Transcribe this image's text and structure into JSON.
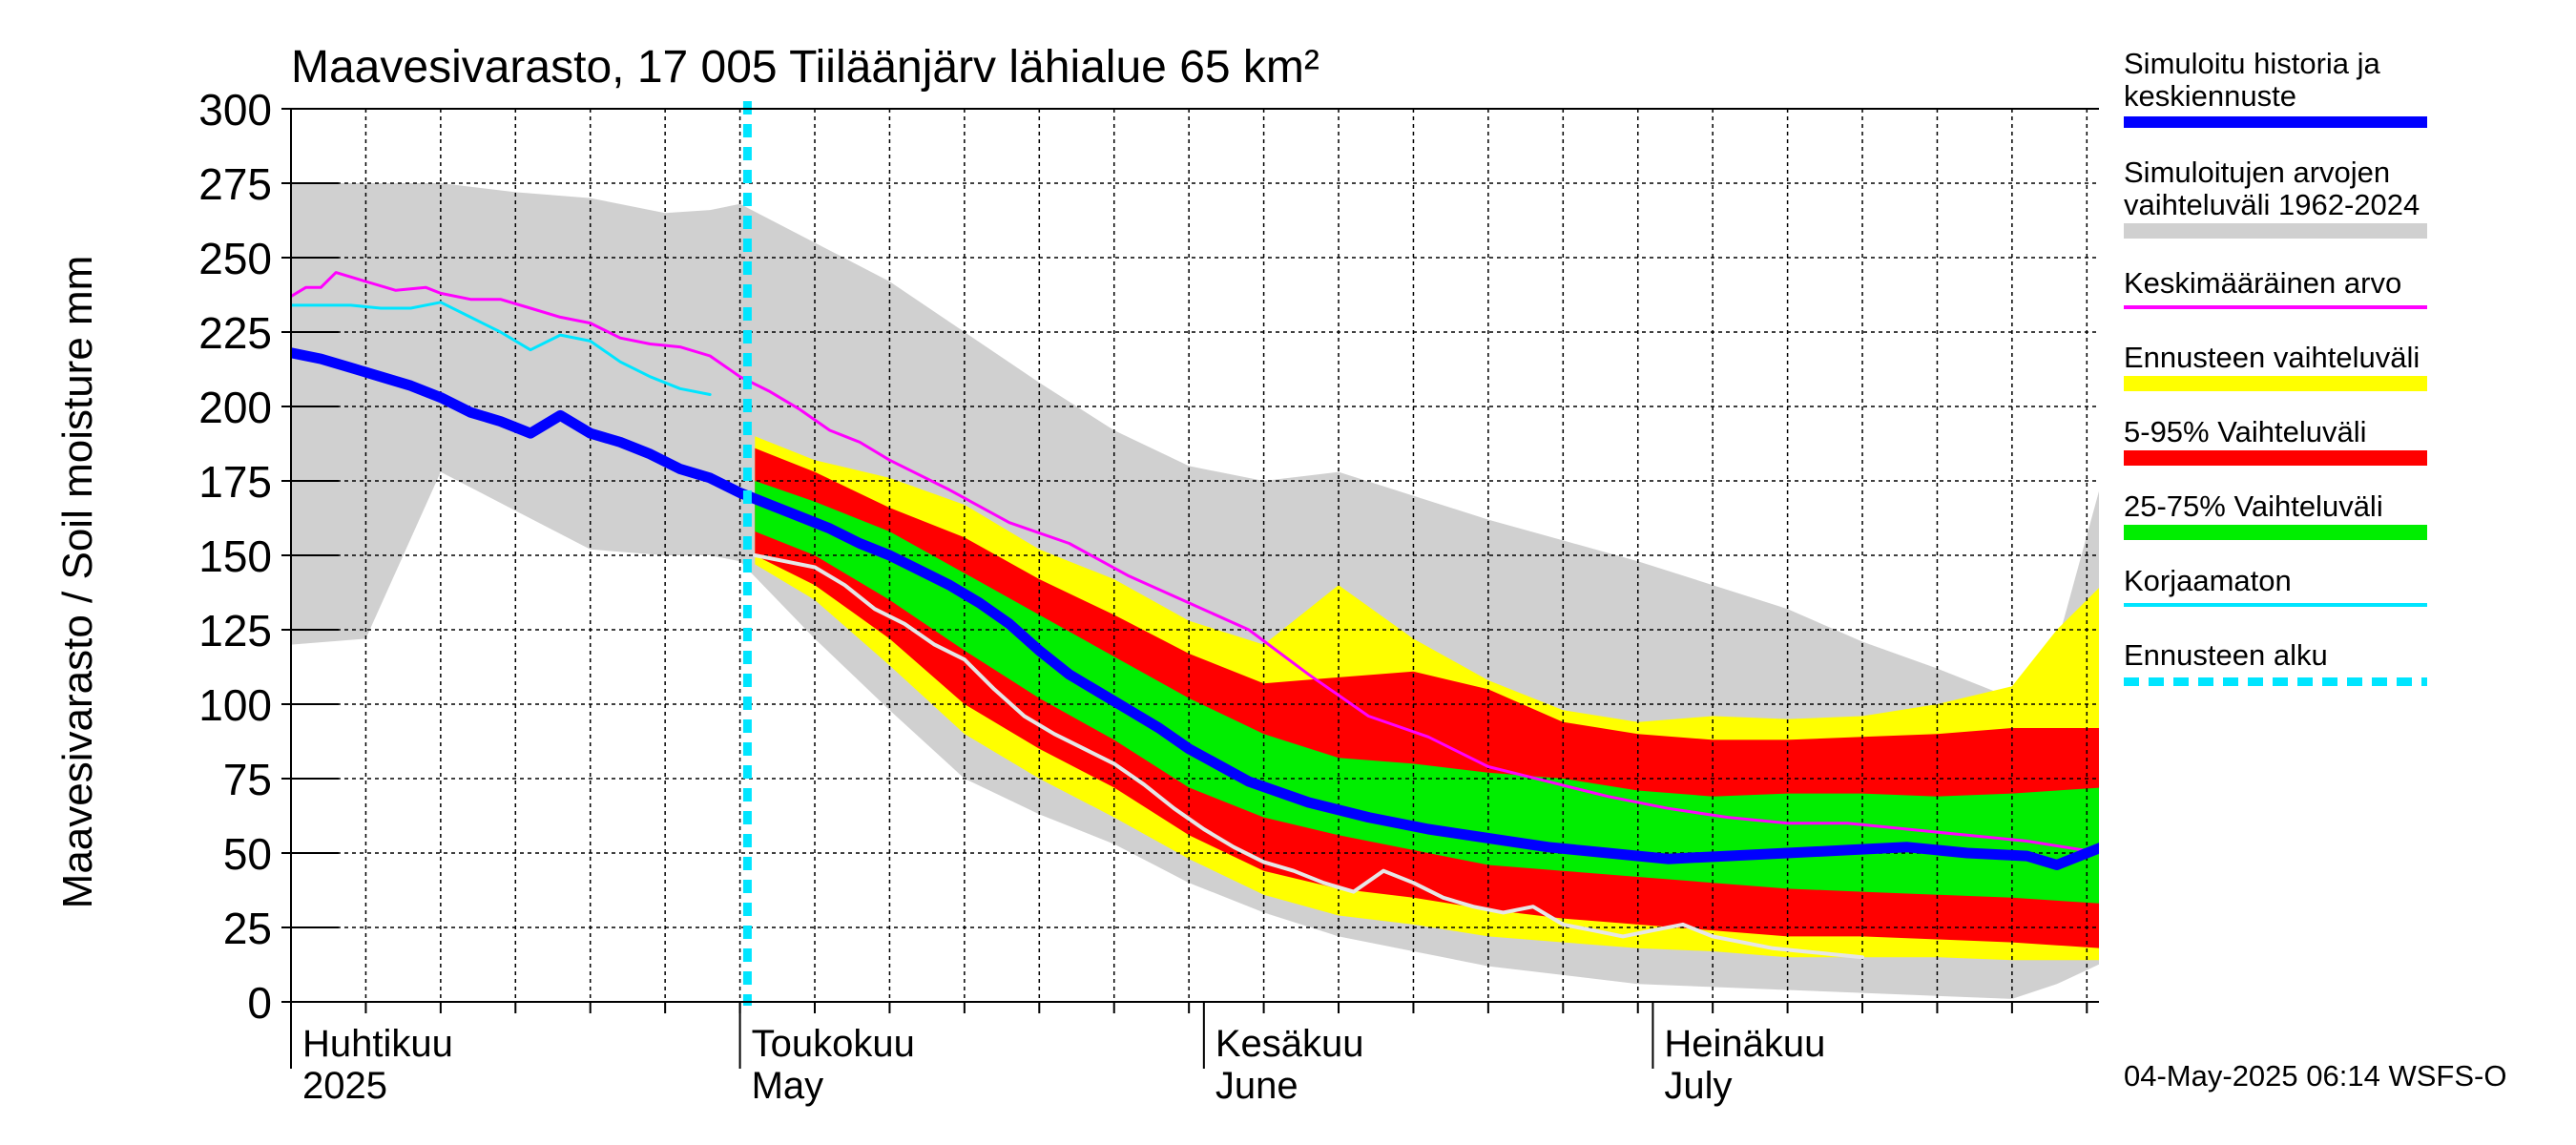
{
  "chart_data": {
    "type": "area",
    "title": "Maavesivarasto, 17 005 Tiiläänjärv lähialue 65 km²",
    "ylabel": "Maavesivarasto / Soil moisture   mm",
    "xlabel": "",
    "ylim": [
      0,
      300
    ],
    "yticks": [
      0,
      25,
      50,
      75,
      100,
      125,
      150,
      175,
      200,
      225,
      250,
      275,
      300
    ],
    "xlim": [
      0,
      121
    ],
    "x_unit": "days since 2025-04-01",
    "grid": true,
    "month_labels": [
      {
        "fi": "Huhtikuu",
        "en": "2025",
        "day": 0
      },
      {
        "fi": "Toukokuu",
        "en": "May",
        "day": 30
      },
      {
        "fi": "Kesäkuu",
        "en": "June",
        "day": 61
      },
      {
        "fi": "Heinäkuu",
        "en": "July",
        "day": 91
      }
    ],
    "forecast_start_day": 30.5,
    "series": [
      {
        "name": "Simuloitujen arvojen vaihteluväli 1962-2024",
        "kind": "band",
        "color": "#d0d0d0",
        "x": [
          0,
          5,
          10,
          15,
          20,
          25,
          28,
          30,
          35,
          40,
          45,
          50,
          55,
          60,
          65,
          70,
          75,
          80,
          85,
          90,
          95,
          100,
          105,
          110,
          115,
          118,
          121
        ],
        "upper": [
          275,
          275,
          275,
          272,
          270,
          265,
          266,
          268,
          255,
          242,
          225,
          208,
          192,
          180,
          175,
          178,
          170,
          162,
          155,
          148,
          140,
          132,
          121,
          112,
          102,
          120,
          175
        ],
        "lower": [
          120,
          122,
          178,
          165,
          152,
          150,
          150,
          148,
          122,
          98,
          75,
          63,
          53,
          40,
          30,
          22,
          17,
          12,
          9,
          6,
          5,
          4,
          3,
          2,
          1,
          6,
          13
        ]
      },
      {
        "name": "Ennusteen vaihteluväli",
        "kind": "band",
        "color": "#ffff00",
        "x": [
          31,
          35,
          40,
          45,
          50,
          55,
          60,
          65,
          70,
          75,
          80,
          85,
          90,
          95,
          100,
          105,
          110,
          115,
          118,
          121
        ],
        "upper": [
          190,
          182,
          176,
          167,
          152,
          142,
          128,
          120,
          140,
          122,
          108,
          98,
          94,
          96,
          95,
          96,
          100,
          106,
          125,
          140
        ],
        "lower": [
          147,
          135,
          113,
          90,
          75,
          62,
          48,
          36,
          29,
          26,
          22,
          20,
          18,
          17,
          15,
          15,
          15,
          14,
          14,
          14
        ]
      },
      {
        "name": "5-95% Vaihteluväli",
        "kind": "band",
        "color": "#ff0000",
        "x": [
          31,
          35,
          40,
          45,
          50,
          55,
          60,
          65,
          70,
          75,
          80,
          85,
          90,
          95,
          100,
          105,
          110,
          115,
          118,
          121
        ],
        "upper": [
          186,
          178,
          166,
          156,
          142,
          130,
          117,
          107,
          109,
          111,
          105,
          94,
          90,
          88,
          88,
          89,
          90,
          92,
          92,
          92
        ],
        "lower": [
          150,
          140,
          122,
          100,
          85,
          72,
          56,
          44,
          38,
          35,
          31,
          28,
          26,
          24,
          22,
          22,
          21,
          20,
          19,
          18
        ]
      },
      {
        "name": "25-75% Vaihteluväli",
        "kind": "band",
        "color": "#00ee00",
        "x": [
          31,
          35,
          40,
          45,
          50,
          55,
          60,
          65,
          70,
          75,
          80,
          85,
          90,
          95,
          100,
          105,
          110,
          115,
          118,
          121
        ],
        "upper": [
          175,
          168,
          158,
          144,
          130,
          116,
          102,
          90,
          82,
          80,
          77,
          75,
          71,
          69,
          70,
          70,
          69,
          70,
          71,
          72
        ],
        "lower": [
          158,
          150,
          135,
          118,
          102,
          88,
          72,
          62,
          56,
          51,
          46,
          44,
          42,
          40,
          38,
          37,
          36,
          35,
          34,
          33
        ]
      },
      {
        "name": "Keskimääräinen arvo",
        "kind": "line",
        "color": "#ff00ff",
        "width": 3,
        "x": [
          0,
          1,
          2,
          3,
          5,
          7,
          9,
          10,
          12,
          14,
          16,
          18,
          20,
          22,
          24,
          26,
          28,
          30,
          32,
          34,
          36,
          38,
          40,
          44,
          48,
          52,
          56,
          60,
          64,
          68,
          72,
          76,
          80,
          84,
          88,
          92,
          96,
          100,
          104,
          108,
          112,
          116,
          121
        ],
        "y": [
          237,
          240,
          240,
          245,
          242,
          239,
          240,
          238,
          236,
          236,
          233,
          230,
          228,
          223,
          221,
          220,
          217,
          210,
          205,
          199,
          192,
          188,
          182,
          172,
          161,
          154,
          143,
          134,
          125,
          110,
          96,
          89,
          79,
          74,
          69,
          65,
          62,
          60,
          60,
          58,
          56,
          54,
          50
        ]
      },
      {
        "name": "Korjaamaton",
        "kind": "line",
        "color": "#00e5ff",
        "width": 3,
        "x": [
          0,
          2,
          4,
          6,
          8,
          10,
          12,
          14,
          16,
          18,
          20,
          22,
          24,
          26,
          28
        ],
        "y": [
          234,
          234,
          234,
          233,
          233,
          235,
          230,
          225,
          219,
          224,
          222,
          215,
          210,
          206,
          204
        ]
      },
      {
        "name": "Simuloitu historia ja keskiennuste",
        "kind": "line",
        "color": "#0000ff",
        "width": 11,
        "x": [
          0,
          2,
          4,
          6,
          8,
          10,
          12,
          14,
          16,
          18,
          20,
          22,
          24,
          26,
          28,
          30,
          32,
          34,
          36,
          38,
          40,
          42,
          44,
          46,
          48,
          50,
          52,
          54,
          56,
          58,
          60,
          64,
          68,
          72,
          76,
          80,
          84,
          88,
          92,
          96,
          100,
          104,
          108,
          112,
          116,
          118,
          121
        ],
        "y": [
          218,
          216,
          213,
          210,
          207,
          203,
          198,
          195,
          191,
          197,
          191,
          188,
          184,
          179,
          176,
          171,
          167,
          163,
          159,
          154,
          150,
          145,
          140,
          134,
          127,
          118,
          110,
          104,
          98,
          92,
          85,
          74,
          67,
          62,
          58,
          55,
          52,
          50,
          48,
          49,
          50,
          51,
          52,
          50,
          49,
          46,
          52
        ]
      },
      {
        "name": "Uncorrected white",
        "kind": "line",
        "color": "#e6e6e6",
        "width": 4,
        "x": [
          31,
          33,
          35,
          37,
          39,
          41,
          43,
          45,
          47,
          49,
          51,
          53,
          55,
          57,
          59,
          61,
          63,
          65,
          67,
          69,
          71,
          73,
          75,
          77,
          79,
          81,
          83,
          85,
          87,
          89,
          91,
          93,
          95,
          97,
          99,
          101,
          103,
          105
        ],
        "y": [
          150,
          148,
          146,
          140,
          132,
          127,
          120,
          115,
          105,
          96,
          90,
          85,
          80,
          73,
          65,
          58,
          52,
          47,
          44,
          40,
          37,
          44,
          40,
          35,
          32,
          30,
          32,
          26,
          24,
          22,
          24,
          26,
          22,
          20,
          18,
          17,
          16,
          15
        ]
      }
    ]
  },
  "legend": [
    {
      "label": "Simuloitu historia ja\nkeskiennuste",
      "color": "#0000ff",
      "style": "thick"
    },
    {
      "label": "Simuloitujen arvojen\nvaihteluväli 1962-2024",
      "color": "#d0d0d0",
      "style": "bar"
    },
    {
      "label": "Keskimääräinen arvo",
      "color": "#ff00ff",
      "style": "thin"
    },
    {
      "label": "Ennusteen vaihteluväli",
      "color": "#ffff00",
      "style": "bar"
    },
    {
      "label": "5-95% Vaihteluväli",
      "color": "#ff0000",
      "style": "bar"
    },
    {
      "label": "25-75% Vaihteluväli",
      "color": "#00ee00",
      "style": "bar"
    },
    {
      "label": "Korjaamaton",
      "color": "#00e5ff",
      "style": "thin"
    },
    {
      "label": "Ennusteen alku",
      "color": "#00e5ff",
      "style": "dashed"
    }
  ],
  "footer": "04-May-2025 06:14 WSFS-O"
}
